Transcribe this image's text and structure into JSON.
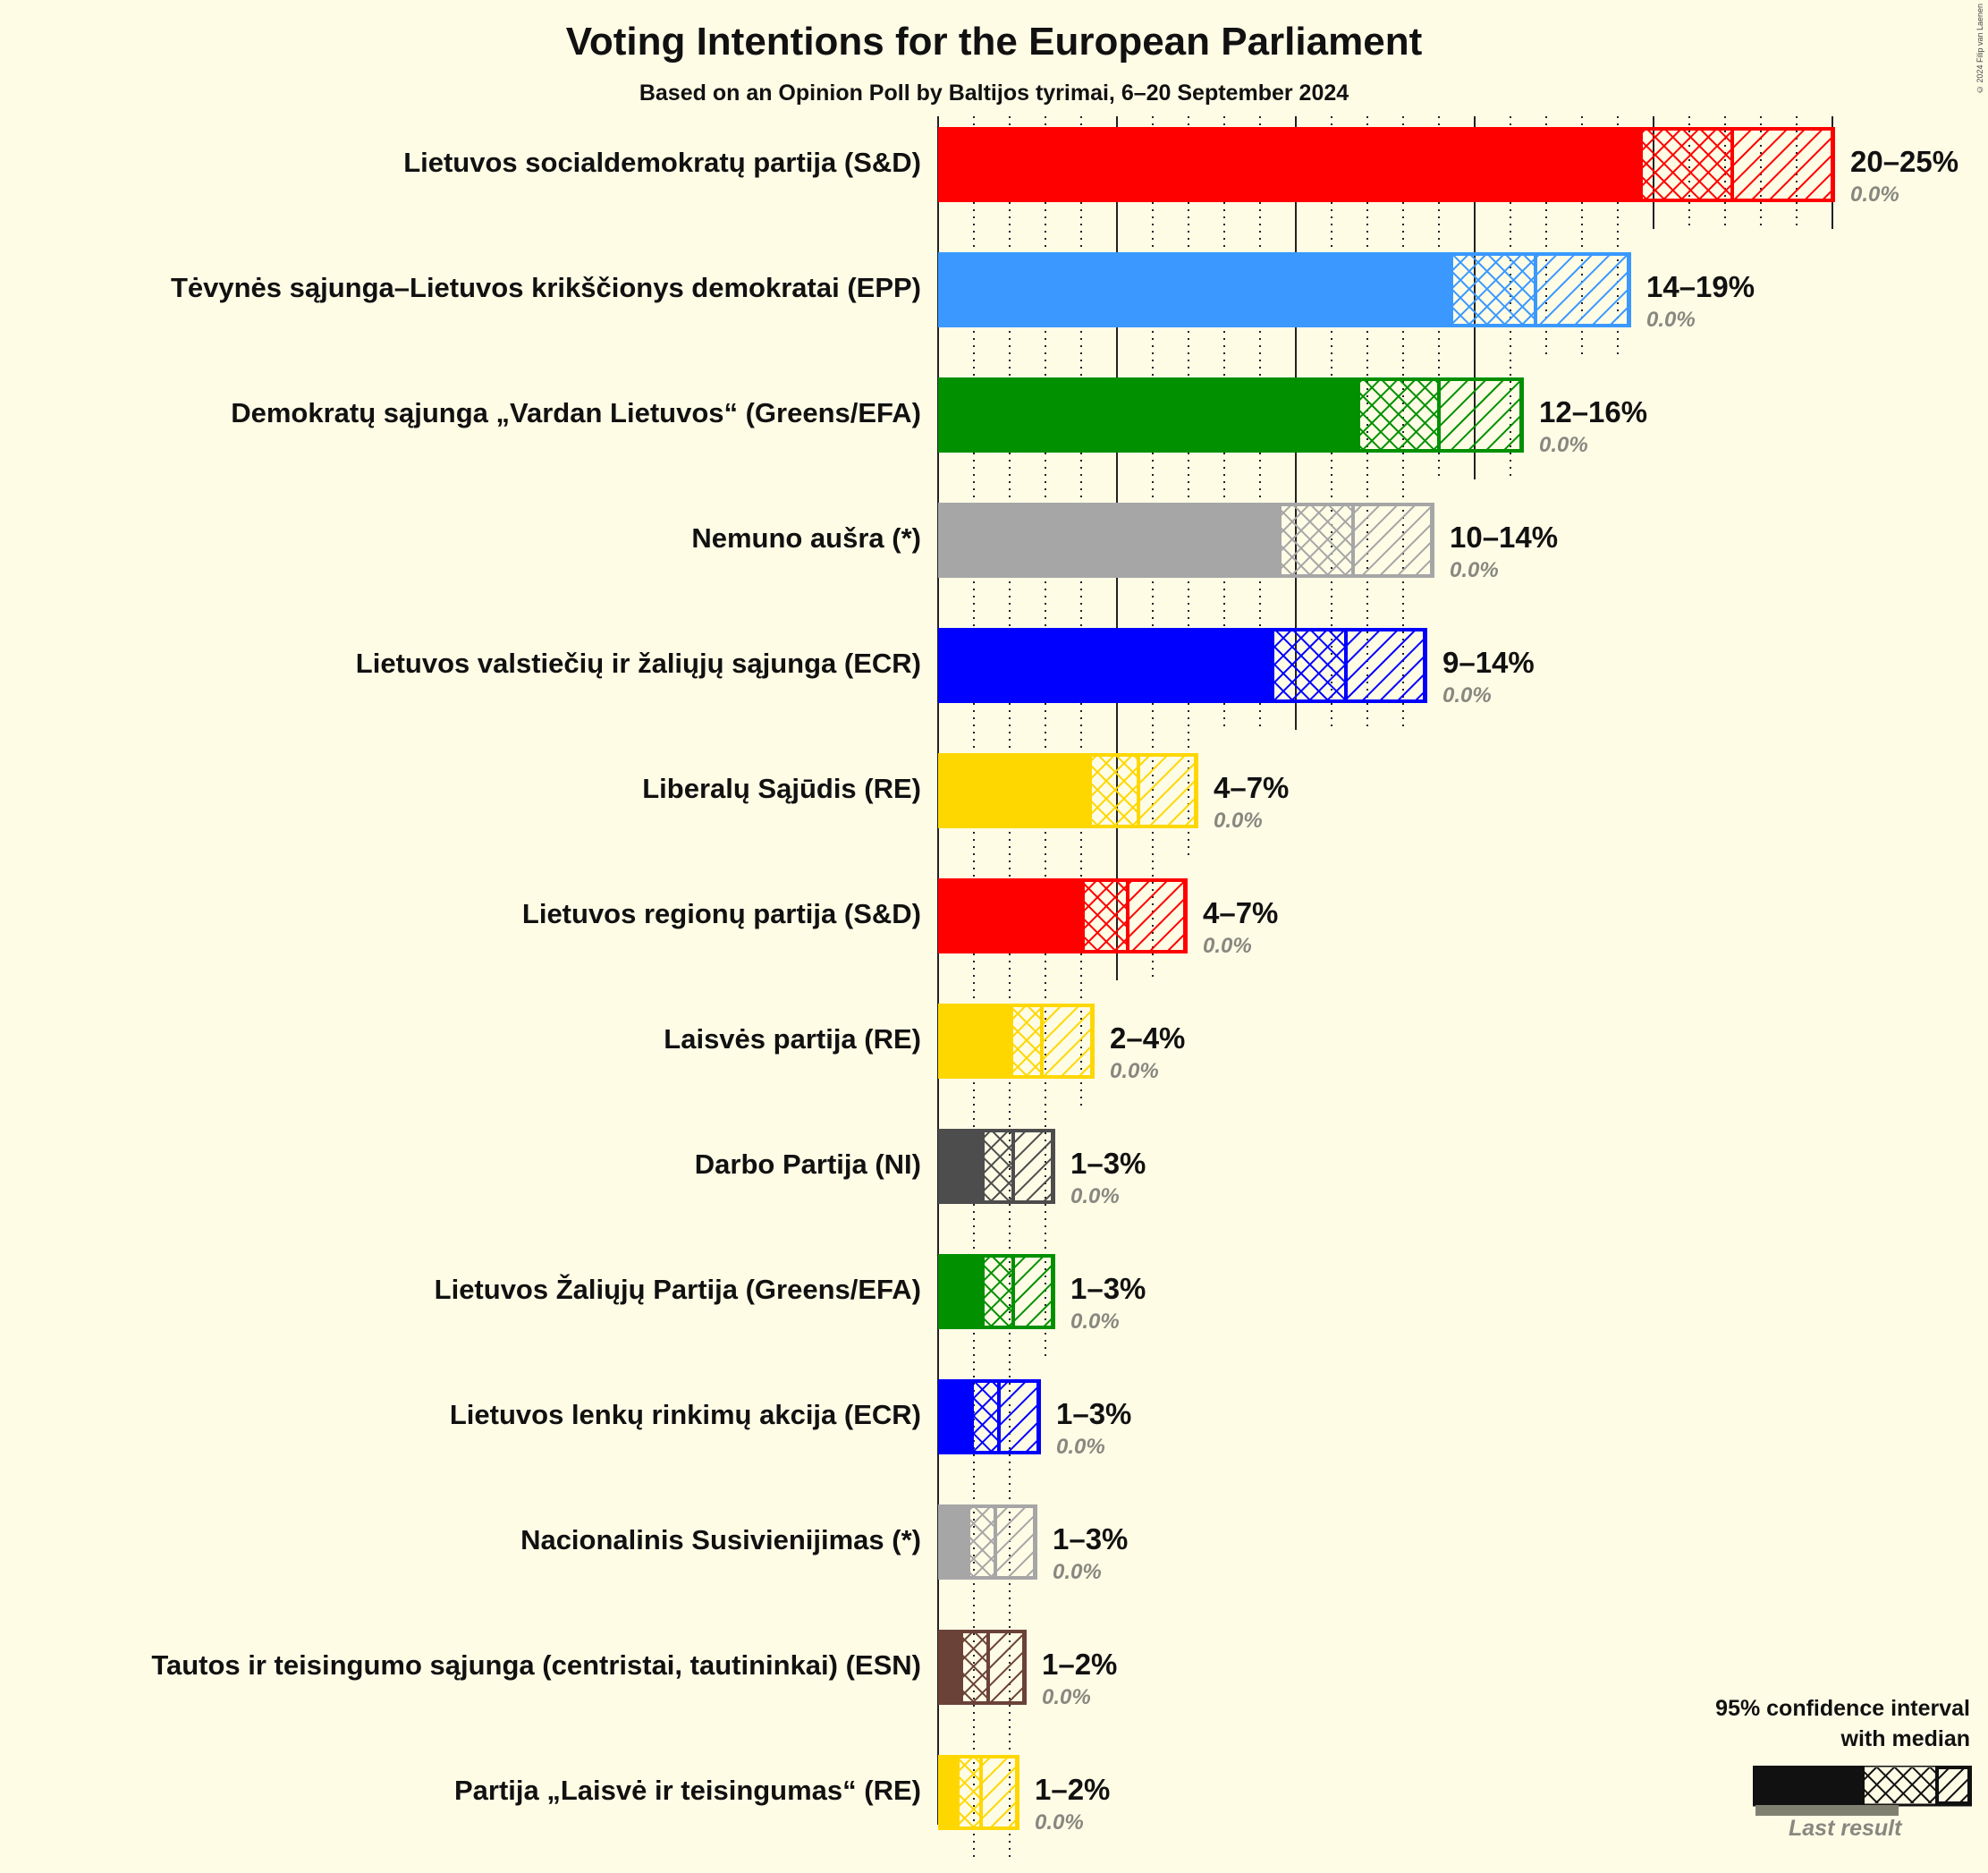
{
  "header": {
    "title": "Voting Intentions for the European Parliament",
    "subtitle": "Based on an Opinion Poll by Baltijos tyrimai, 6–20 September 2024",
    "copyright": "© 2024 Filip van Laenen"
  },
  "legend": {
    "title_line1": "95% confidence interval",
    "title_line2": "with median",
    "last_result": "Last result"
  },
  "colors": {
    "background": "#FFFCE6",
    "gridline": "#222222",
    "last_result_text": "#888880"
  },
  "chart_data": {
    "type": "bar",
    "orientation": "horizontal",
    "title": "Voting Intentions for the European Parliament",
    "subtitle": "Based on an Opinion Poll by Baltijos tyrimai, 6–20 September 2024",
    "xlabel": "",
    "ylabel": "",
    "xlim": [
      0,
      25
    ],
    "grid": {
      "major_every": 5,
      "minor_every": 1,
      "major_style": "solid",
      "minor_style": "dotted"
    },
    "legend_position": "bottom-right",
    "categories": [
      "Lietuvos socialdemokratų partija (S&D)",
      "Tėvynės sąjunga–Lietuvos krikščionys demokratai (EPP)",
      "Demokratų sąjunga „Vardan Lietuvos“ (Greens/EFA)",
      "Nemuno aušra (*)",
      "Lietuvos valstiečių ir žaliųjų sąjunga (ECR)",
      "Liberalų Sąjūdis (RE)",
      "Lietuvos regionų partija (S&D)",
      "Laisvės partija (RE)",
      "Darbo Partija (NI)",
      "Lietuvos Žaliųjų Partija (Greens/EFA)",
      "Lietuvos lenkų rinkimų akcija (ECR)",
      "Nacionalinis Susivienijimas (*)",
      "Tautos ir teisingumo sąjunga (centristai, tautininkai) (ESN)",
      "Partija „Laisvė ir teisingumas“ (RE)"
    ],
    "series": [
      {
        "name": "CI lower (95%)",
        "values": [
          19.7,
          14.4,
          11.8,
          9.6,
          9.4,
          4.3,
          4.1,
          2.1,
          1.3,
          1.3,
          1.0,
          0.9,
          0.7,
          0.6
        ]
      },
      {
        "name": "Median",
        "values": [
          22.2,
          16.7,
          14.0,
          11.6,
          11.4,
          5.6,
          5.3,
          2.9,
          2.1,
          2.1,
          1.7,
          1.6,
          1.4,
          1.2
        ]
      },
      {
        "name": "CI upper (95%)",
        "values": [
          25.0,
          19.3,
          16.3,
          13.8,
          13.6,
          7.2,
          6.9,
          4.3,
          3.2,
          3.2,
          2.8,
          2.7,
          2.4,
          2.2
        ]
      },
      {
        "name": "Last result",
        "values": [
          0.0,
          0.0,
          0.0,
          0.0,
          0.0,
          0.0,
          0.0,
          0.0,
          0.0,
          0.0,
          0.0,
          0.0,
          0.0,
          0.0
        ]
      }
    ],
    "range_labels": [
      "20–25%",
      "14–19%",
      "12–16%",
      "10–14%",
      "9–14%",
      "4–7%",
      "4–7%",
      "2–4%",
      "1–3%",
      "1–3%",
      "1–3%",
      "1–3%",
      "1–2%",
      "1–2%"
    ],
    "last_result_labels": [
      "0.0%",
      "0.0%",
      "0.0%",
      "0.0%",
      "0.0%",
      "0.0%",
      "0.0%",
      "0.0%",
      "0.0%",
      "0.0%",
      "0.0%",
      "0.0%",
      "0.0%",
      "0.0%"
    ],
    "bar_colors": [
      "#FF0000",
      "#3A98FF",
      "#009000",
      "#A6A6A6",
      "#0000FF",
      "#FFD700",
      "#FF0000",
      "#FFD700",
      "#4D4D4D",
      "#009000",
      "#0000FF",
      "#A6A6A6",
      "#6B4238",
      "#FFD700"
    ],
    "legend": [
      "95% confidence interval with median",
      "Last result"
    ]
  }
}
